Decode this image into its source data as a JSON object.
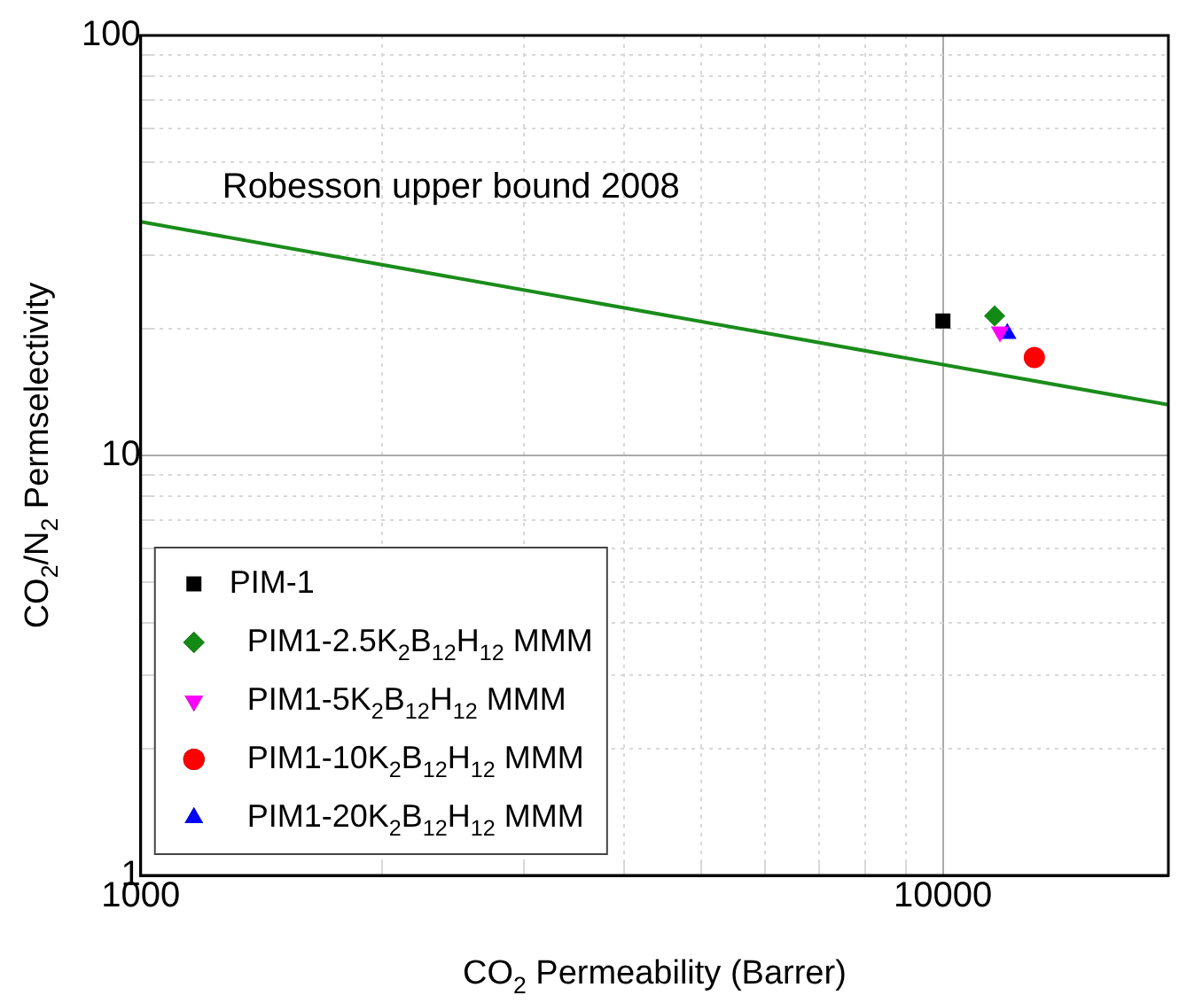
{
  "chart_data": {
    "type": "scatter",
    "xlabel": "CO$_{2}$ Permeability (Barrer)",
    "ylabel": "CO$_{2}$/N$_{2}$ Permselectivity",
    "log": "xy",
    "grid": true,
    "legend": "bottom left",
    "xlim": [
      1000,
      19100
    ],
    "ylim": [
      1,
      100
    ],
    "xticks": [
      1000,
      {
        "value": 2000,
        "label": null
      },
      {
        "value": 3000,
        "label": null
      },
      {
        "value": 4000,
        "label": null
      },
      {
        "value": 5000,
        "label": null
      },
      {
        "value": 6000,
        "label": null
      },
      {
        "value": 7000,
        "label": null
      },
      {
        "value": 8000,
        "label": null
      },
      {
        "value": 9000,
        "label": null
      },
      10000
    ],
    "yticks": [
      1,
      {
        "value": 2,
        "label": null
      },
      {
        "value": 3,
        "label": null
      },
      {
        "value": 4,
        "label": null
      },
      {
        "value": 5,
        "label": null
      },
      {
        "value": 6,
        "label": null
      },
      {
        "value": 7,
        "label": null
      },
      {
        "value": 8,
        "label": null
      },
      {
        "value": 9,
        "label": null
      },
      10,
      {
        "value": 20,
        "label": null
      },
      {
        "value": 30,
        "label": null
      },
      {
        "value": 40,
        "label": null
      },
      {
        "value": 50,
        "label": null
      },
      {
        "value": 60,
        "label": null
      },
      {
        "value": 70,
        "label": null
      },
      {
        "value": 80,
        "label": null
      },
      {
        "value": 90,
        "label": null
      },
      100
    ],
    "annotations": [
      "Robesson upper bound 2008"
    ],
    "series": [
      {
        "type": "line",
        "color": "#1a8c1a",
        "marker": "none",
        "x": [
          1000,
          19100
        ],
        "values": [
          36,
          13.2
        ]
      },
      {
        "name": "PIM-1",
        "color": "#000000",
        "marker": "square",
        "x": [
          10000
        ],
        "values": [
          20.9
        ]
      },
      {
        "name": "PIM1-2.5K$_{2}$B$_{12}$H$_{12}$ MMM",
        "color": "#138a13",
        "marker": "diamond",
        "x": [
          11600
        ],
        "values": [
          21.5
        ]
      },
      {
        "name": "PIM1-5K$_{2}$B$_{12}$H$_{12}$ MMM",
        "color": "#ff00ff",
        "marker": "triangle-down",
        "x": [
          11780
        ],
        "values": [
          19.7
        ]
      },
      {
        "name": "PIM1-10K$_{2}$B$_{12}$H$_{12}$ MMM",
        "color": "#ff0000",
        "marker": "circle",
        "x": [
          13000
        ],
        "values": [
          17.1
        ]
      },
      {
        "name": "PIM1-20K$_{2}$B$_{12}$H$_{12}$ MMM",
        "color": "#0000ff",
        "marker": "triangle",
        "x": [
          12030
        ],
        "values": [
          19.5
        ]
      }
    ]
  }
}
